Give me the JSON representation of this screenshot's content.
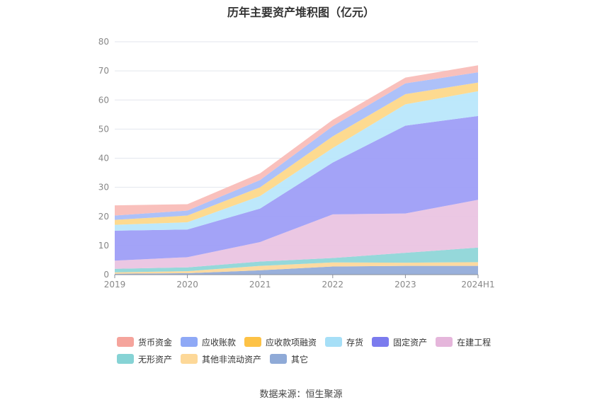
{
  "chart_data": {
    "type": "area",
    "stacked": true,
    "title": "历年主要资产堆积图（亿元）",
    "source": "数据来源：恒生聚源",
    "categories": [
      "2019",
      "2020",
      "2021",
      "2022",
      "2023",
      "2024H1"
    ],
    "y_ticks": [
      "0",
      "10",
      "20",
      "30",
      "40",
      "50",
      "60",
      "70",
      "80"
    ],
    "ylim": [
      0,
      80
    ],
    "grid": true,
    "legend_position": "bottom",
    "series": [
      {
        "name": "其它",
        "color": "#93acd9",
        "values": [
          0.3,
          0.5,
          1.5,
          2.8,
          3.0,
          3.0
        ]
      },
      {
        "name": "其他非流动资产",
        "color": "#fdd89b",
        "values": [
          0.5,
          0.7,
          1.5,
          1.4,
          1.1,
          1.3
        ]
      },
      {
        "name": "无形资产",
        "color": "#8fd6d8",
        "values": [
          1.2,
          1.3,
          1.5,
          1.5,
          3.4,
          5.0
        ]
      },
      {
        "name": "在建工程",
        "color": "#eac4e2",
        "values": [
          2.8,
          3.5,
          6.7,
          15.0,
          13.5,
          16.4
        ]
      },
      {
        "name": "固定资产",
        "color": "#9e9ef7",
        "values": [
          10.3,
          9.5,
          11.5,
          17.8,
          30.2,
          28.8
        ]
      },
      {
        "name": "存货",
        "color": "#b9e7fb",
        "values": [
          2.0,
          2.5,
          4.3,
          5.0,
          7.3,
          8.5
        ]
      },
      {
        "name": "应收款项融资",
        "color": "#fdd88a",
        "values": [
          1.7,
          2.3,
          3.0,
          4.0,
          3.5,
          3.0
        ]
      },
      {
        "name": "应收账款",
        "color": "#a9bef9",
        "values": [
          1.5,
          1.7,
          2.5,
          3.5,
          3.7,
          3.5
        ]
      },
      {
        "name": "货币资金",
        "color": "#f9bdb8",
        "values": [
          3.5,
          2.2,
          2.3,
          2.2,
          2.0,
          2.4
        ]
      }
    ],
    "legend_order": [
      [
        "货币资金",
        "应收账款",
        "应收款项融资",
        "存货",
        "固定资产",
        "在建工程"
      ],
      [
        "无形资产",
        "其他非流动资产",
        "其它"
      ]
    ],
    "legend_colors": {
      "货币资金": "#f5a49c",
      "应收账款": "#8fa9f6",
      "应收款项融资": "#fdc246",
      "存货": "#a6dff7",
      "固定资产": "#7b7bee",
      "在建工程": "#e5b6db",
      "无形资产": "#86d3d5",
      "其他非流动资产": "#fdd898",
      "其它": "#8faad7"
    }
  }
}
